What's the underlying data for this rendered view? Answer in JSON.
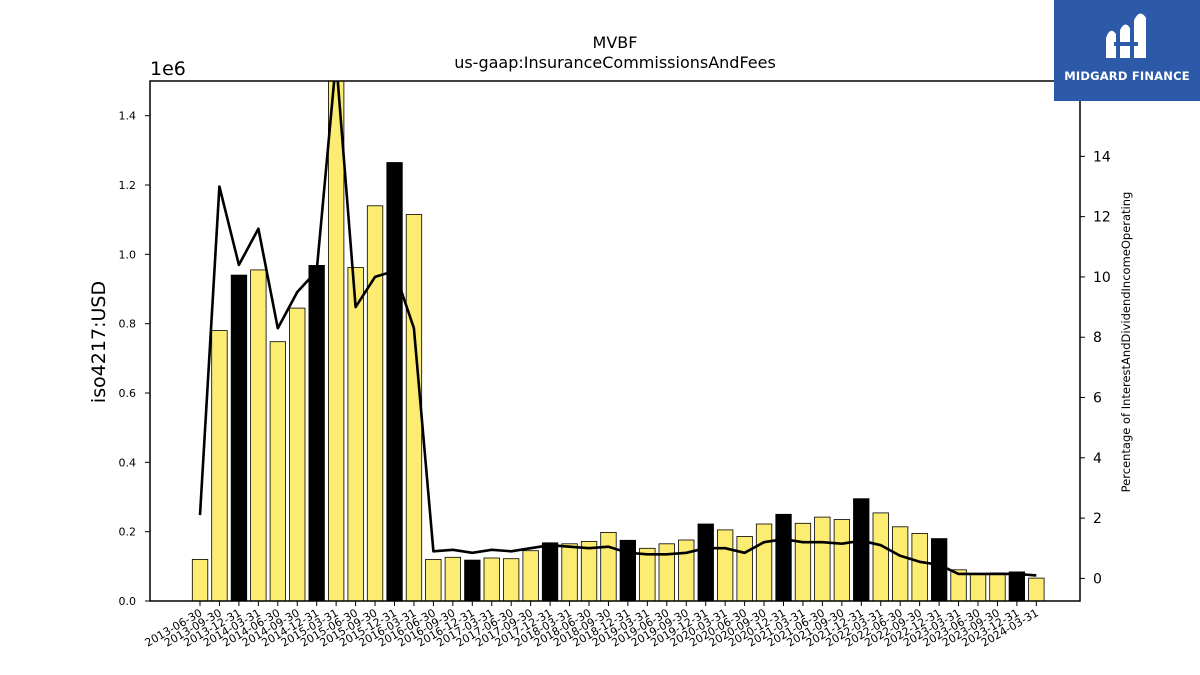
{
  "brand": {
    "name": "MIDGARD FINANCE",
    "bg_color": "#2c5aa8",
    "icon": "midgard-logo-icon"
  },
  "chart_data": {
    "type": "bar",
    "title": "MVBF",
    "subtitle": "us-gaap:InsuranceCommissionsAndFees",
    "ylabel": "iso4217:USD",
    "y_scale_label": "1e6",
    "y2label": "Percentage of InterestAndDividendIncomeOperating",
    "ylim": [
      0,
      1500000
    ],
    "y2lim": [
      -0.75,
      16.5
    ],
    "yticks": [
      "0.0",
      "0.2",
      "0.4",
      "0.6",
      "0.8",
      "1.0",
      "1.2",
      "1.4"
    ],
    "y2ticks": [
      "0",
      "2",
      "4",
      "6",
      "8",
      "10",
      "12",
      "14"
    ],
    "bar_color": "#fcec72",
    "highlight_color": "#000000",
    "line_color": "#000000",
    "categories": [
      "2013-06-30",
      "2013-09-30",
      "2013-12-31",
      "2014-03-31",
      "2014-06-30",
      "2014-09-30",
      "2014-12-31",
      "2015-03-31",
      "2015-06-30",
      "2015-09-30",
      "2015-12-31",
      "2016-03-31",
      "2016-06-30",
      "2016-09-30",
      "2016-12-31",
      "2017-03-31",
      "2017-06-30",
      "2017-09-30",
      "2017-12-31",
      "2018-03-31",
      "2018-06-30",
      "2018-09-30",
      "2018-12-31",
      "2019-03-31",
      "2019-06-30",
      "2019-09-30",
      "2019-12-31",
      "2020-03-31",
      "2020-06-30",
      "2020-09-30",
      "2020-12-31",
      "2021-03-31",
      "2021-06-30",
      "2021-09-30",
      "2021-12-31",
      "2022-03-31",
      "2022-06-30",
      "2022-09-30",
      "2022-12-31",
      "2023-03-31",
      "2023-06-30",
      "2023-09-30",
      "2023-12-31",
      "2024-03-31"
    ],
    "series": [
      {
        "type": "bar",
        "values": [
          120000,
          780000,
          940000,
          955000,
          748000,
          845000,
          968000,
          1530000,
          962000,
          1140000,
          1265000,
          1115000,
          120000,
          126000,
          118000,
          124000,
          122000,
          145000,
          168000,
          165000,
          172000,
          198000,
          175000,
          152000,
          165000,
          176000,
          222000,
          205000,
          186000,
          222000,
          250000,
          224000,
          242000,
          235000,
          295000,
          254000,
          214000,
          195000,
          180000,
          90000,
          78000,
          81000,
          84000,
          66000
        ],
        "highlight": [
          false,
          false,
          true,
          false,
          false,
          false,
          true,
          false,
          false,
          false,
          true,
          false,
          false,
          false,
          true,
          false,
          false,
          false,
          true,
          false,
          false,
          false,
          true,
          false,
          false,
          false,
          true,
          false,
          false,
          false,
          true,
          false,
          false,
          false,
          true,
          false,
          false,
          false,
          true,
          false,
          false,
          false,
          true,
          false
        ]
      },
      {
        "type": "line",
        "axis": "right",
        "values": [
          2.1,
          13.0,
          10.4,
          11.6,
          8.3,
          9.5,
          10.2,
          17.2,
          9.0,
          10.0,
          10.2,
          8.3,
          0.9,
          0.95,
          0.85,
          0.95,
          0.9,
          1.0,
          1.1,
          1.05,
          1.0,
          1.05,
          0.85,
          0.8,
          0.8,
          0.85,
          1.0,
          1.0,
          0.85,
          1.2,
          1.3,
          1.2,
          1.2,
          1.15,
          1.25,
          1.1,
          0.75,
          0.55,
          0.45,
          0.15,
          0.15,
          0.15,
          0.15,
          0.1
        ]
      }
    ]
  }
}
